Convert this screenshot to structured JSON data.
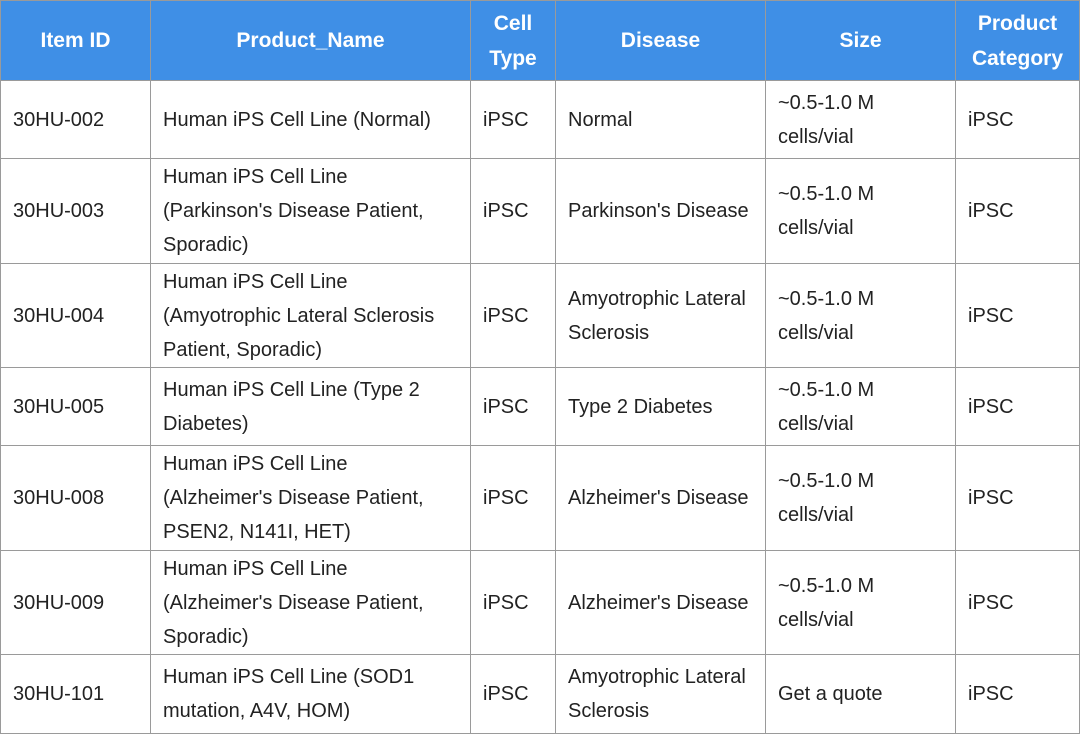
{
  "table": {
    "header": [
      "Item ID",
      "Product_Name",
      "Cell Type",
      "Disease",
      "Size",
      "Product Category"
    ],
    "rows": [
      [
        "30HU-002",
        "Human iPS Cell Line (Normal)",
        "iPSC",
        "Normal",
        "~0.5-1.0 M cells/vial",
        "iPSC"
      ],
      [
        "30HU-003",
        "Human iPS Cell Line (Parkinson's Disease Patient, Sporadic)",
        "iPSC",
        "Parkinson's Disease",
        "~0.5-1.0 M cells/vial",
        "iPSC"
      ],
      [
        "30HU-004",
        "Human iPS Cell Line (Amyotrophic Lateral Sclerosis Patient, Sporadic)",
        "iPSC",
        "Amyotrophic Lateral Sclerosis",
        "~0.5-1.0 M cells/vial",
        "iPSC"
      ],
      [
        "30HU-005",
        "Human iPS Cell Line (Type 2 Diabetes)",
        "iPSC",
        "Type 2 Diabetes",
        "~0.5-1.0 M cells/vial",
        "iPSC"
      ],
      [
        "30HU-008",
        "Human iPS Cell Line (Alzheimer's Disease Patient, PSEN2, N141I, HET)",
        "iPSC",
        "Alzheimer's Disease",
        "~0.5-1.0 M cells/vial",
        "iPSC"
      ],
      [
        "30HU-009",
        "Human iPS Cell Line (Alzheimer's Disease Patient, Sporadic)",
        "iPSC",
        "Alzheimer's Disease",
        "~0.5-1.0 M cells/vial",
        "iPSC"
      ],
      [
        "30HU-101",
        "Human iPS Cell Line (SOD1 mutation, A4V, HOM)",
        "iPSC",
        "Amyotrophic Lateral Sclerosis",
        "Get a quote",
        "iPSC"
      ]
    ]
  }
}
